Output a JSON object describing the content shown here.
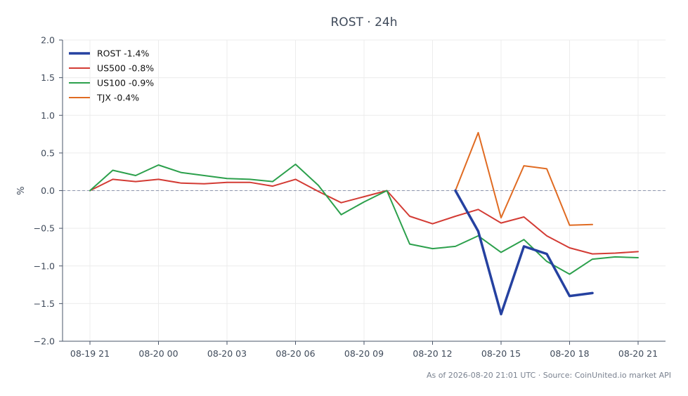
{
  "chart_data": {
    "type": "line",
    "title": "ROST · 24h",
    "ylabel": "%",
    "xlabel": "",
    "ylim": [
      -2.0,
      2.0
    ],
    "xlim": [
      -1.2,
      25.2
    ],
    "yticks": [
      -2.0,
      -1.5,
      -1.0,
      -0.5,
      0.0,
      0.5,
      1.0,
      1.5,
      2.0
    ],
    "ytick_labels": [
      "−2.0",
      "−1.5",
      "−1.0",
      "−0.5",
      "0.0",
      "0.5",
      "1.0",
      "1.5",
      "2.0"
    ],
    "xticks": [
      {
        "pos": 0,
        "label": "08-19 21"
      },
      {
        "pos": 3,
        "label": "08-20 00"
      },
      {
        "pos": 6,
        "label": "08-20 03"
      },
      {
        "pos": 9,
        "label": "08-20 06"
      },
      {
        "pos": 12,
        "label": "08-20 09"
      },
      {
        "pos": 15,
        "label": "08-20 12"
      },
      {
        "pos": 18,
        "label": "08-20 15"
      },
      {
        "pos": 21,
        "label": "08-20 18"
      },
      {
        "pos": 24,
        "label": "08-20 21"
      }
    ],
    "reference_line": 0.0,
    "grid": true,
    "legend_position": "top-left",
    "series": [
      {
        "name": "ROST -1.4%",
        "color": "#2541a0",
        "width": 3.5,
        "x": [
          16,
          17,
          18,
          19,
          20,
          21,
          22
        ],
        "y": [
          0.0,
          -0.54,
          -1.64,
          -0.74,
          -0.84,
          -1.4,
          -1.36
        ]
      },
      {
        "name": "US500 -0.8%",
        "color": "#d33b34",
        "width": 2,
        "x": [
          0,
          1,
          2,
          3,
          4,
          5,
          6,
          7,
          8,
          9,
          10,
          11,
          12,
          13,
          14,
          15,
          16,
          17,
          18,
          19,
          20,
          21,
          22,
          23,
          24
        ],
        "y": [
          0.0,
          0.15,
          0.12,
          0.15,
          0.1,
          0.09,
          0.11,
          0.11,
          0.06,
          0.15,
          -0.01,
          -0.16,
          -0.08,
          0.0,
          -0.34,
          -0.44,
          -0.34,
          -0.25,
          -0.43,
          -0.35,
          -0.6,
          -0.76,
          -0.84,
          -0.83,
          -0.81
        ]
      },
      {
        "name": "US100 -0.9%",
        "color": "#2ca04c",
        "width": 2,
        "x": [
          0,
          1,
          2,
          3,
          4,
          5,
          6,
          7,
          8,
          9,
          10,
          11,
          12,
          13,
          14,
          15,
          16,
          17,
          18,
          19,
          20,
          21,
          22,
          23,
          24
        ],
        "y": [
          0.0,
          0.27,
          0.2,
          0.34,
          0.24,
          0.2,
          0.16,
          0.15,
          0.12,
          0.35,
          0.07,
          -0.32,
          -0.15,
          0.0,
          -0.71,
          -0.77,
          -0.74,
          -0.6,
          -0.82,
          -0.65,
          -0.94,
          -1.11,
          -0.91,
          -0.88,
          -0.89
        ]
      },
      {
        "name": "TJX -0.4%",
        "color": "#e06b22",
        "width": 2,
        "x": [
          16,
          17,
          18,
          19,
          20,
          21,
          22
        ],
        "y": [
          0.0,
          0.77,
          -0.36,
          0.33,
          0.29,
          -0.46,
          -0.45
        ]
      }
    ]
  },
  "footer": "As of 2026-08-20 21:01 UTC · Source: CoinUnited.io market API"
}
